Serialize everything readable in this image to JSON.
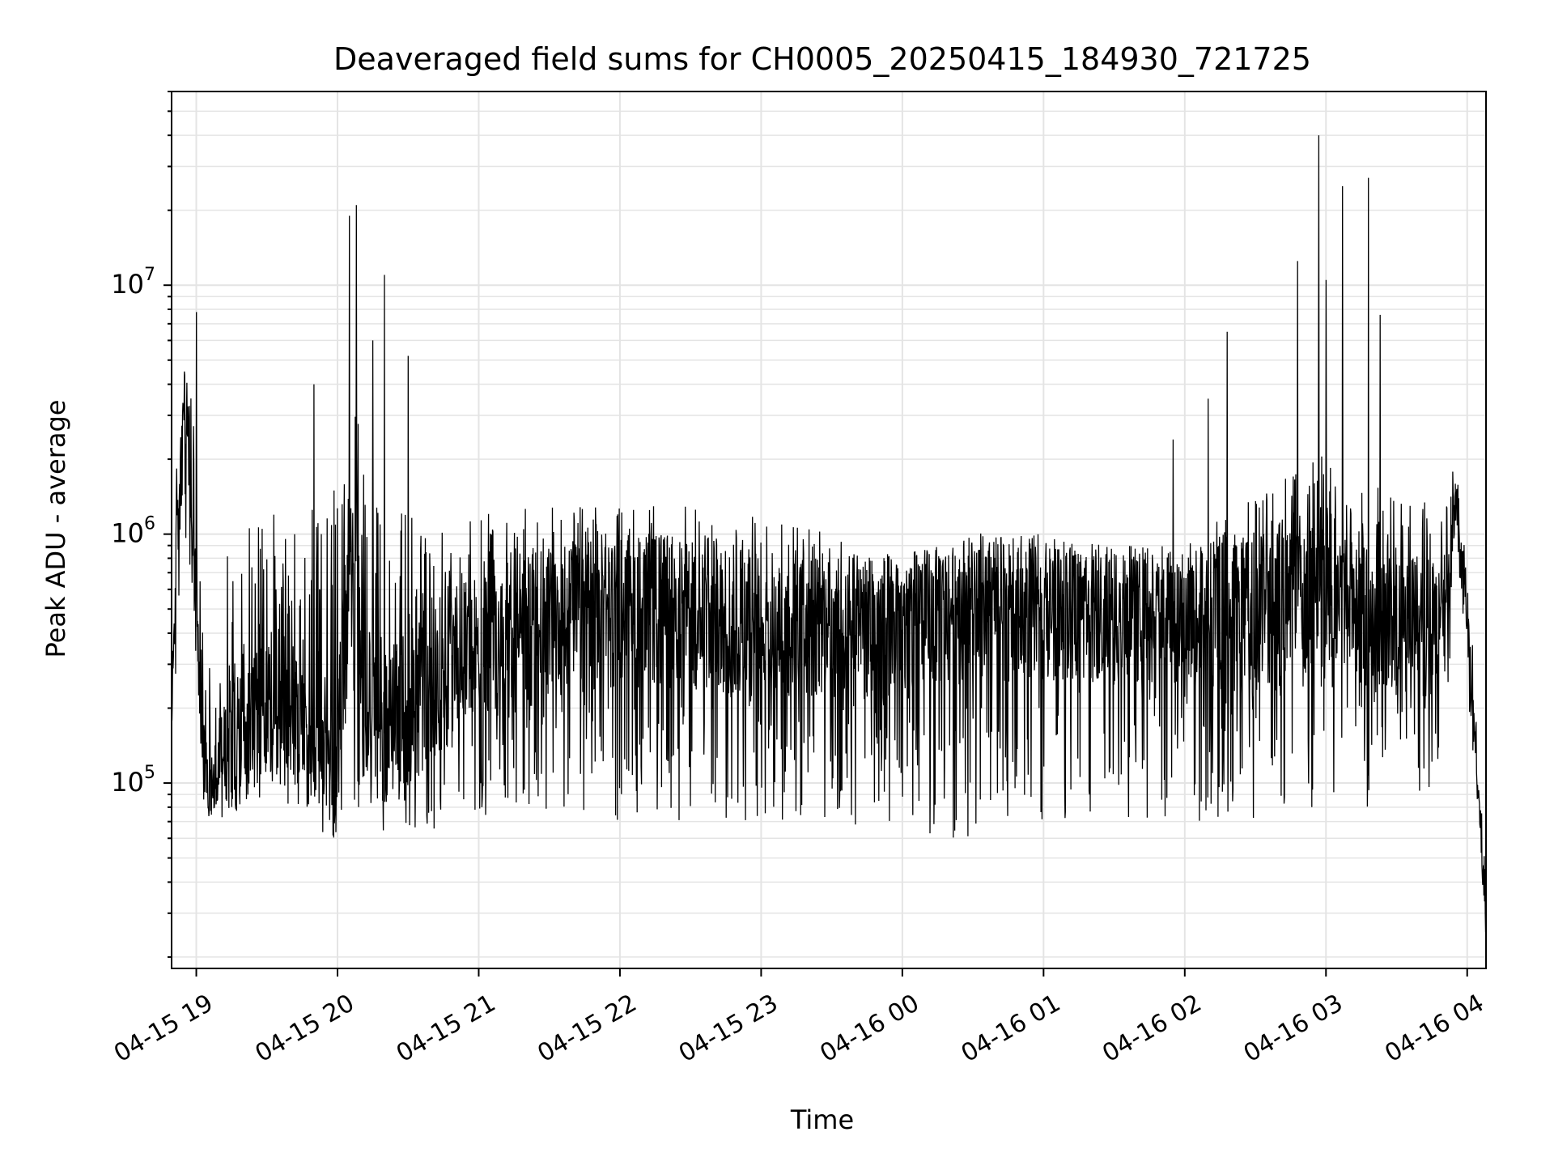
{
  "chart_data": {
    "type": "line",
    "title": "Deaveraged field sums for CH0005_20250415_184930_721725",
    "xlabel": "Time",
    "ylabel": "Peak ADU - average",
    "x_type": "datetime",
    "y_scale": "log",
    "xlim": [
      "2025-04-15 18:49:30",
      "2025-04-16 04:08:00"
    ],
    "ylim": [
      18000,
      60000000
    ],
    "x_tick_labels": [
      "04-15 19",
      "04-15 20",
      "04-15 21",
      "04-15 22",
      "04-15 23",
      "04-16 00",
      "04-16 01",
      "04-16 02",
      "04-16 03",
      "04-16 04"
    ],
    "y_tick_labels": [
      {
        "base": "10",
        "exp": "5"
      },
      {
        "base": "10",
        "exp": "7"
      },
      {
        "base": "10",
        "exp": "6"
      }
    ],
    "grid": true,
    "line_color": "#000000",
    "series": [
      {
        "x": [
          "2025-04-15 18:49:30",
          "2025-04-15 18:52:00",
          "2025-04-15 18:55:00",
          "2025-04-15 18:58:00",
          "2025-04-15 19:00:00",
          "2025-04-15 19:03:00",
          "2025-04-15 19:05:00",
          "2025-04-15 19:08:00",
          "2025-04-15 19:10:00",
          "2025-04-15 19:15:00",
          "2025-04-15 19:20:00",
          "2025-04-15 19:30:00",
          "2025-04-15 19:40:00",
          "2025-04-15 19:50:00",
          "2025-04-15 20:00:00",
          "2025-04-15 20:05:00",
          "2025-04-15 20:10:00",
          "2025-04-15 20:15:00",
          "2025-04-15 20:20:00",
          "2025-04-15 20:30:00",
          "2025-04-15 20:40:00",
          "2025-04-15 21:00:00",
          "2025-04-15 21:30:00",
          "2025-04-15 22:00:00",
          "2025-04-15 22:30:00",
          "2025-04-15 23:00:00",
          "2025-04-15 23:30:00",
          "2025-04-16 00:00:00",
          "2025-04-16 00:30:00",
          "2025-04-16 01:00:00",
          "2025-04-16 01:30:00",
          "2025-04-16 02:00:00",
          "2025-04-16 02:15:00",
          "2025-04-16 02:30:00",
          "2025-04-16 02:45:00",
          "2025-04-16 02:58:00",
          "2025-04-16 03:10:00",
          "2025-04-16 03:22:00",
          "2025-04-16 03:35:00",
          "2025-04-16 03:50:00",
          "2025-04-16 03:55:00",
          "2025-04-16 04:00:00",
          "2025-04-16 04:05:00",
          "2025-04-16 04:08:00"
        ],
        "y": [
          200000,
          1000000,
          3000000,
          1500000,
          400000,
          130000,
          100000,
          110000,
          120000,
          150000,
          200000,
          180000,
          160000,
          140000,
          120000,
          700000,
          300000,
          200000,
          150000,
          200000,
          250000,
          350000,
          450000,
          500000,
          480000,
          430000,
          420000,
          450000,
          500000,
          500000,
          480000,
          450000,
          480000,
          500000,
          550000,
          560000,
          550000,
          540000,
          450000,
          400000,
          1300000,
          500000,
          90000,
          25000
        ],
        "band_low": [
          150000,
          300000,
          800000,
          500000,
          250000,
          80000,
          75000,
          75000,
          75000,
          75000,
          80000,
          80000,
          80000,
          80000,
          75000,
          80000,
          75000,
          80000,
          60000,
          60000,
          65000,
          70000,
          70000,
          70000,
          70000,
          70000,
          70000,
          60000,
          60000,
          70000,
          70000,
          70000,
          70000,
          70000,
          70000,
          75000,
          80000,
          80000,
          90000,
          100000,
          800000,
          250000,
          60000,
          20000
        ],
        "band_high": [
          300000,
          2500000,
          4000000,
          4500000,
          2000000,
          400000,
          300000,
          300000,
          600000,
          1000000,
          1200000,
          1300000,
          1300000,
          1500000,
          1500000,
          3000000,
          3000000,
          1500000,
          1300000,
          1300000,
          1300000,
          1300000,
          1300000,
          1300000,
          1300000,
          1200000,
          1000000,
          800000,
          1000000,
          1000000,
          900000,
          900000,
          1200000,
          1500000,
          2000000,
          2500000,
          2000000,
          1600000,
          1400000,
          1300000,
          2000000,
          900000,
          150000,
          40000
        ],
        "spikes": [
          {
            "x": "2025-04-15 18:55:00",
            "y": 4500000
          },
          {
            "x": "2025-04-15 19:00:00",
            "y": 7800000
          },
          {
            "x": "2025-04-15 19:50:00",
            "y": 4000000
          },
          {
            "x": "2025-04-15 20:05:00",
            "y": 19000000
          },
          {
            "x": "2025-04-15 20:08:00",
            "y": 21000000
          },
          {
            "x": "2025-04-15 20:20:00",
            "y": 11000000
          },
          {
            "x": "2025-04-15 20:15:00",
            "y": 6000000
          },
          {
            "x": "2025-04-15 20:30:00",
            "y": 5200000
          },
          {
            "x": "2025-04-16 01:55:00",
            "y": 2400000
          },
          {
            "x": "2025-04-16 02:18:00",
            "y": 6500000
          },
          {
            "x": "2025-04-16 02:10:00",
            "y": 3500000
          },
          {
            "x": "2025-04-16 02:48:00",
            "y": 12500000
          },
          {
            "x": "2025-04-16 02:57:00",
            "y": 40000000
          },
          {
            "x": "2025-04-16 03:07:00",
            "y": 25000000
          },
          {
            "x": "2025-04-16 03:18:00",
            "y": 27000000
          },
          {
            "x": "2025-04-16 03:23:00",
            "y": 7600000
          },
          {
            "x": "2025-04-16 03:00:00",
            "y": 10500000
          }
        ]
      }
    ]
  }
}
